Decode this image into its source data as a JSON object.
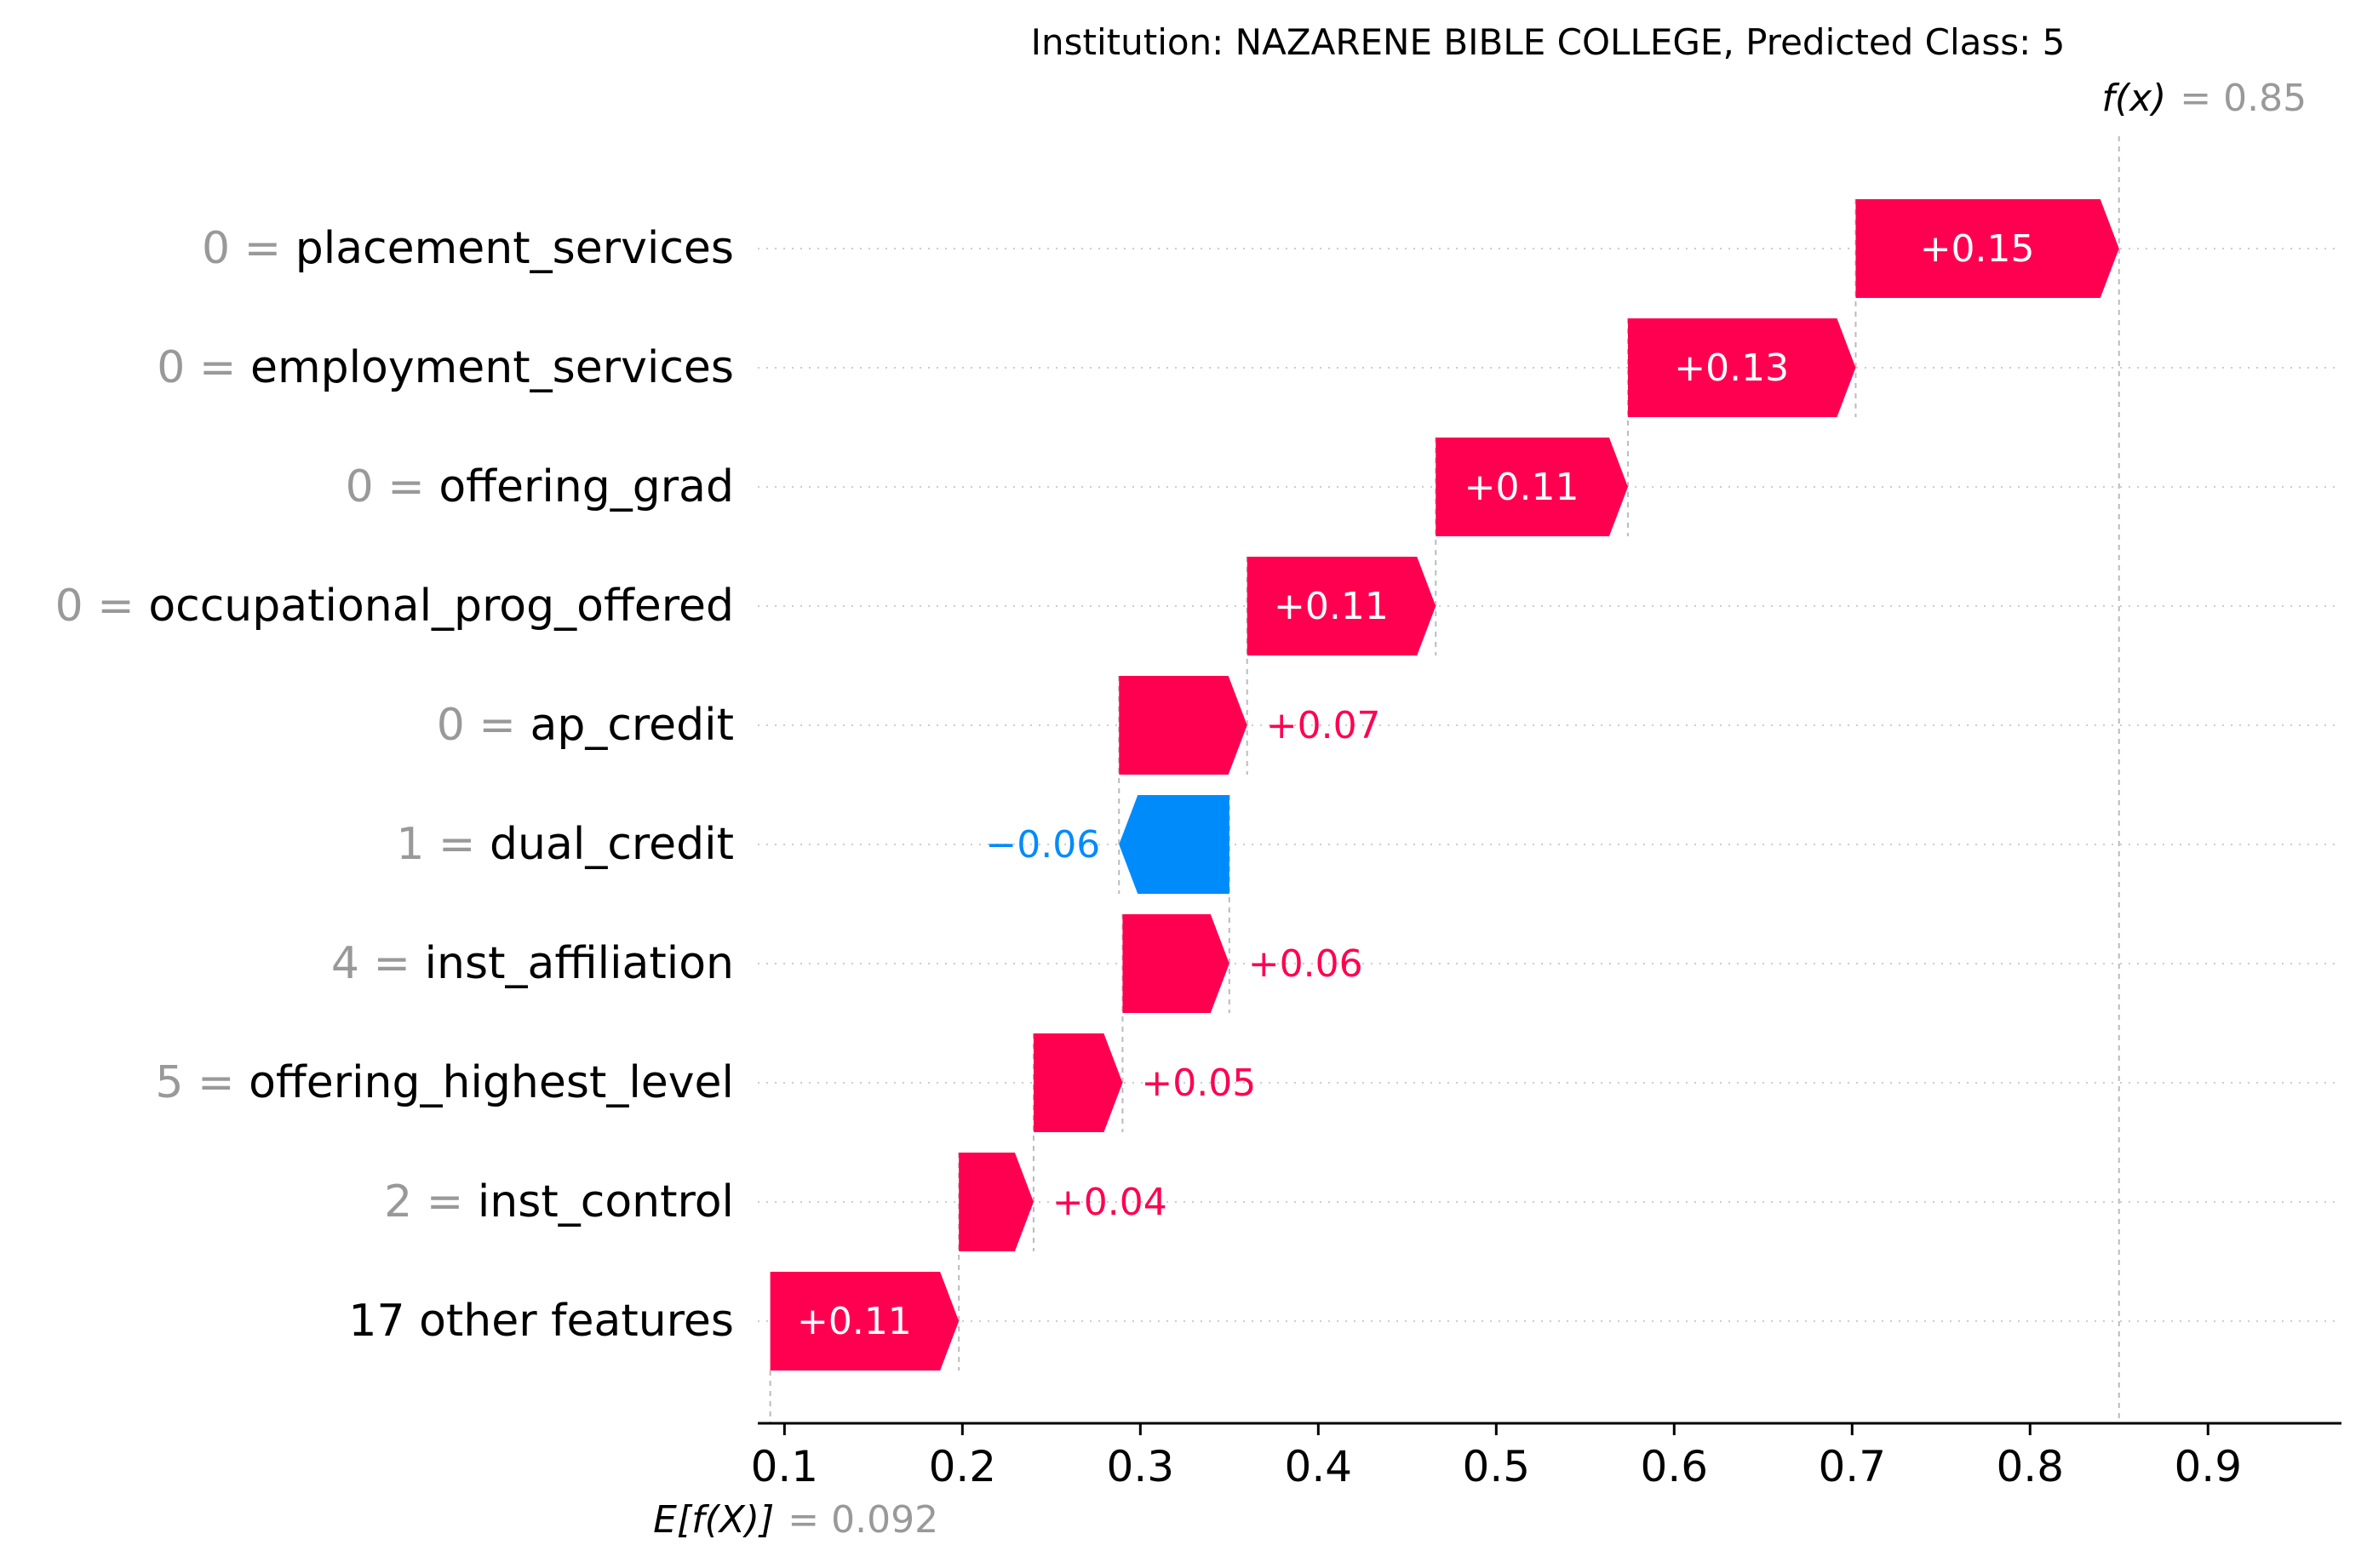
{
  "chart_data": {
    "type": "waterfall",
    "title": "Institution: NAZARENE BIBLE COLLEGE, Predicted Class: 5",
    "base_value": 0.092,
    "base_label_expr": "E[f(X)]",
    "base_value_text": "= 0.092",
    "output_value": 0.85,
    "output_label_expr": "f(x)",
    "output_value_text": "= 0.85",
    "xlim": [
      0.085,
      0.975
    ],
    "xticks": [
      0.1,
      0.2,
      0.3,
      0.4,
      0.5,
      0.6,
      0.7,
      0.8,
      0.9
    ],
    "xtick_labels": [
      "0.1",
      "0.2",
      "0.3",
      "0.4",
      "0.5",
      "0.6",
      "0.7",
      "0.8",
      "0.9"
    ],
    "features": [
      {
        "value_text": "0",
        "name": "placement_services",
        "contribution": 0.148,
        "label": "+0.15",
        "start": 0.702,
        "end": 0.85
      },
      {
        "value_text": "0",
        "name": "employment_services",
        "contribution": 0.128,
        "label": "+0.13",
        "start": 0.574,
        "end": 0.702
      },
      {
        "value_text": "0",
        "name": "offering_grad",
        "contribution": 0.108,
        "label": "+0.11",
        "start": 0.466,
        "end": 0.574
      },
      {
        "value_text": "0",
        "name": "occupational_prog_offered",
        "contribution": 0.106,
        "label": "+0.11",
        "start": 0.36,
        "end": 0.466
      },
      {
        "value_text": "0",
        "name": "ap_credit",
        "contribution": 0.072,
        "label": "+0.07",
        "start": 0.288,
        "end": 0.36
      },
      {
        "value_text": "1",
        "name": "dual_credit",
        "contribution": -0.062,
        "label": "−0.06",
        "start": 0.35,
        "end": 0.288
      },
      {
        "value_text": "4",
        "name": "inst_affiliation",
        "contribution": 0.06,
        "label": "+0.06",
        "start": 0.29,
        "end": 0.35
      },
      {
        "value_text": "5",
        "name": "offering_highest_level",
        "contribution": 0.05,
        "label": "+0.05",
        "start": 0.24,
        "end": 0.29
      },
      {
        "value_text": "2",
        "name": "inst_control",
        "contribution": 0.042,
        "label": "+0.04",
        "start": 0.198,
        "end": 0.24
      },
      {
        "value_text": "",
        "name": "17 other features",
        "contribution": 0.106,
        "label": "+0.11",
        "start": 0.092,
        "end": 0.198
      }
    ],
    "colors": {
      "positive": "#ff0051",
      "negative": "#008bfb",
      "label_gray": "#999999",
      "text": "#000000",
      "guide": "#bbbbbb",
      "grid": "#cccccc"
    }
  }
}
